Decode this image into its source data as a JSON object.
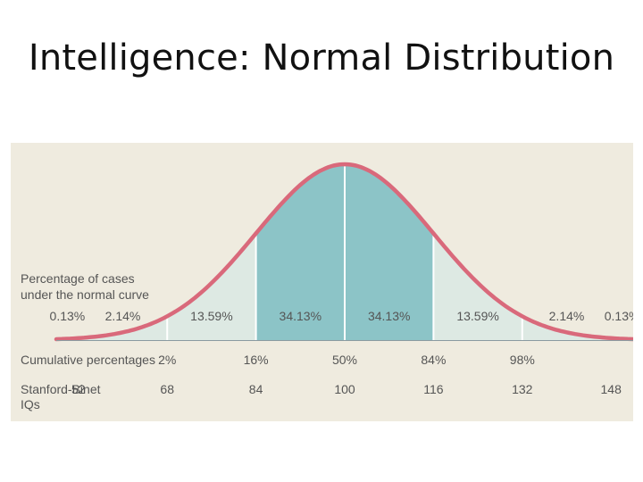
{
  "slide": {
    "title": "Intelligence: Normal Distribution"
  },
  "chart_data": {
    "type": "area",
    "x_domain": [
      48,
      152
    ],
    "y_domain": [
      0,
      1
    ],
    "curve_color": "#d9697b",
    "band_colors": {
      "inner": "#8cc4c7",
      "outer": "#dde9e3",
      "background": "#efebdf"
    },
    "boundaries": [
      52,
      68,
      84,
      100,
      116,
      132,
      148
    ],
    "row_labels": {
      "cases": [
        "Percentage of cases",
        "under the normal curve"
      ],
      "cumulative": "Cumulative percentages",
      "iq": [
        "Stanford-Binet",
        "IQs"
      ]
    },
    "band_percentages": [
      {
        "x": 50,
        "label": "0.13%"
      },
      {
        "x": 60,
        "label": "2.14%"
      },
      {
        "x": 76,
        "label": "13.59%"
      },
      {
        "x": 92,
        "label": "34.13%"
      },
      {
        "x": 108,
        "label": "34.13%"
      },
      {
        "x": 124,
        "label": "13.59%"
      },
      {
        "x": 140,
        "label": "2.14%"
      },
      {
        "x": 150,
        "label": "0.13%"
      }
    ],
    "cumulative_percentages": [
      {
        "x": 68,
        "label": "2%"
      },
      {
        "x": 84,
        "label": "16%"
      },
      {
        "x": 100,
        "label": "50%"
      },
      {
        "x": 116,
        "label": "84%"
      },
      {
        "x": 132,
        "label": "98%"
      }
    ],
    "iq_ticks": [
      "52",
      "68",
      "84",
      "100",
      "116",
      "132",
      "148"
    ]
  }
}
